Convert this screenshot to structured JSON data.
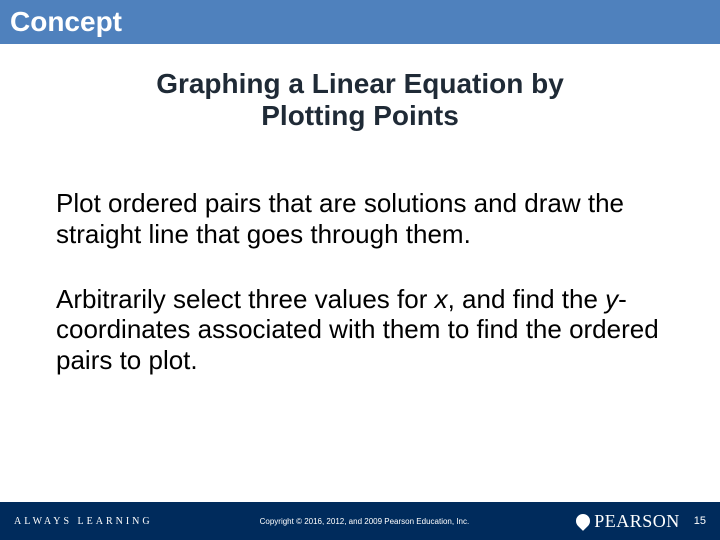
{
  "colors": {
    "header_bg": "#4f81bd",
    "header_text": "#ffffff",
    "subtitle_text": "#1f2a36",
    "body_text": "#000000",
    "footer_bg": "#002b5c",
    "footer_text": "#ffffff",
    "pearson_mark": "#ffffff"
  },
  "typography": {
    "header_fontsize": 28,
    "subtitle_fontsize": 28,
    "body_fontsize": 26,
    "footer_left_fontsize": 10,
    "footer_center_fontsize": 8,
    "pearson_fontsize": 18,
    "page_num_fontsize": 11
  },
  "header": {
    "title": "Concept"
  },
  "main": {
    "subtitle_line1": "Graphing a Linear Equation by",
    "subtitle_line2": "Plotting Points",
    "para1_a": "Plot ordered pairs that are solutions and draw the straight line that goes through them.",
    "para2_a": "Arbitrarily select three values for ",
    "para2_x": "x",
    "para2_b": ", and find the ",
    "para2_y": "y",
    "para2_c": "-coordinates associated with them to find the ordered pairs to plot."
  },
  "footer": {
    "left": "ALWAYS LEARNING",
    "copyright": "Copyright © 2016, 2012, and 2009 Pearson Education, Inc.",
    "brand": "PEARSON",
    "page": "15"
  }
}
